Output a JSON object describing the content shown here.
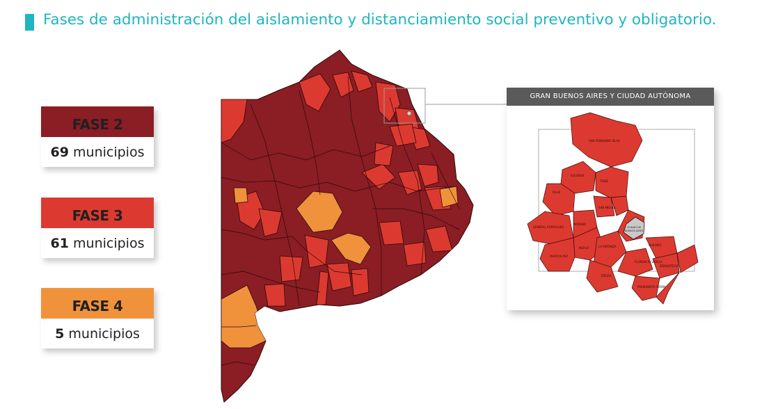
{
  "title": "Fases de administración del aislamiento y distanciamiento social preventivo y obligatorio.",
  "colors": {
    "accent": "#1fb5c1",
    "fase2": "#8b1d24",
    "fase3": "#dc3a30",
    "fase4": "#f0923b",
    "caba": "#c9c9c9"
  },
  "legend": [
    {
      "phase": "FASE 2",
      "count": "69",
      "unit": "municipios",
      "color": "#8b1d24"
    },
    {
      "phase": "FASE 3",
      "count": "61",
      "unit": "municipios",
      "color": "#dc3a30"
    },
    {
      "phase": "FASE 4",
      "count": "5",
      "unit": "municipios",
      "color": "#f0923b"
    }
  ],
  "inset": {
    "header": "GRAN BUENOS AIRES Y CIUDAD AUTÓNOMA",
    "caba_label_1": "CIUDAD DE",
    "caba_label_2": "BUENOS AIRES",
    "labels": [
      "SAN FERNANDO ISLAS",
      "ESCOBAR",
      "TIGRE",
      "PILAR",
      "GENERAL RODRIGUEZ",
      "MORENO",
      "SAN MIGUEL",
      "MERLO",
      "MARCOS PAZ",
      "LA MATANZA",
      "EZEIZA",
      "QUILMES",
      "BERAZATEGUI",
      "FLORENCIO VARELA",
      "PRESIDENTE PERÓN"
    ]
  }
}
